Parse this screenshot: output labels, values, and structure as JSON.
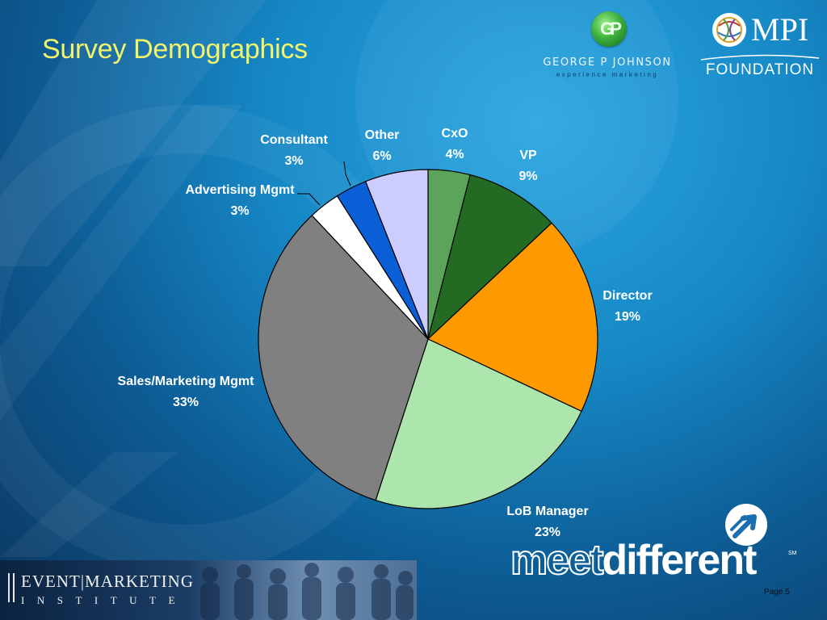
{
  "slide": {
    "title": "Survey Demographics",
    "page": "Page 5"
  },
  "logos": {
    "gpj_name": "GEORGE P JOHNSON",
    "gpj_tagline": "experience marketing",
    "gpj_icon": "gpj-monogram-icon",
    "mpi_name": "MPI",
    "mpi_sub": "FOUNDATION",
    "mpi_icon": "globe-icon",
    "meet_word_a": "meet",
    "meet_word_b": "different",
    "meet_mark": "SM",
    "meet_icon": "arrow-circle-icon",
    "emi_line1": "EVENT|MARKETING",
    "emi_line2": "INSTITUTE"
  },
  "colors": {
    "title": "#f2f56a",
    "label": "#ffffff"
  },
  "chart_data": {
    "type": "pie",
    "start_angle_deg": 0,
    "direction": "clockwise",
    "slices": [
      {
        "label": "CxO",
        "value": 4,
        "display": "4%",
        "color": "#5ba55b"
      },
      {
        "label": "VP",
        "value": 9,
        "display": "9%",
        "color": "#236b23"
      },
      {
        "label": "Director",
        "value": 19,
        "display": "19%",
        "color": "#ff9900"
      },
      {
        "label": "LoB Manager",
        "value": 23,
        "display": "23%",
        "color": "#ade6ad"
      },
      {
        "label": "Sales/Marketing Mgmt",
        "value": 33,
        "display": "33%",
        "color": "#808080"
      },
      {
        "label": "Advertising Mgmt",
        "value": 3,
        "display": "3%",
        "color": "#ffffff"
      },
      {
        "label": "Consultant",
        "value": 3,
        "display": "3%",
        "color": "#0b5fd6"
      },
      {
        "label": "Other",
        "value": 6,
        "display": "6%",
        "color": "#ccccff"
      }
    ]
  }
}
